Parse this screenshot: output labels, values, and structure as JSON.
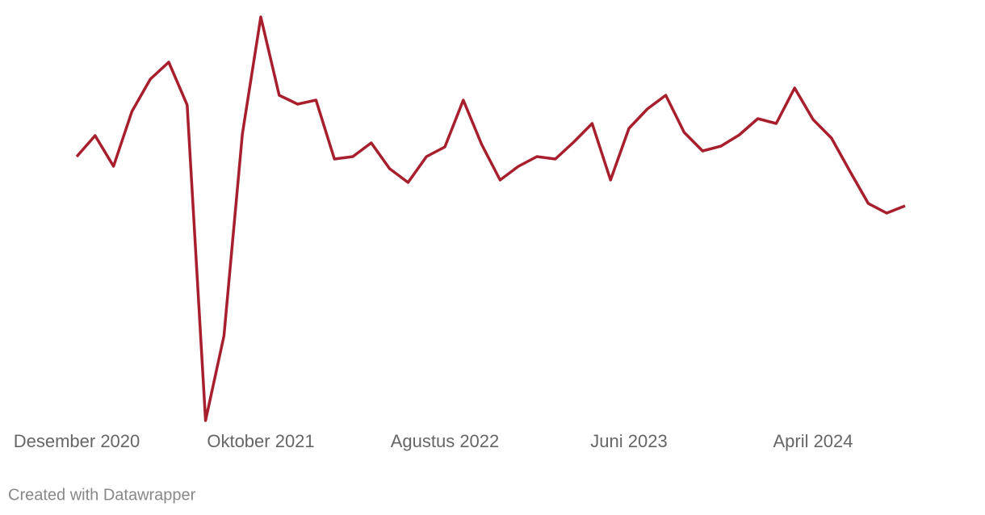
{
  "chart_data": {
    "type": "line",
    "categories": [
      "Desember 2020",
      null,
      null,
      null,
      null,
      null,
      null,
      null,
      null,
      null,
      "Oktober 2021",
      null,
      null,
      null,
      null,
      null,
      null,
      null,
      null,
      null,
      "Agustus 2022",
      null,
      null,
      null,
      null,
      null,
      null,
      null,
      null,
      null,
      "Juni 2023",
      null,
      null,
      null,
      null,
      null,
      null,
      null,
      null,
      null,
      "April 2024",
      null,
      null,
      null,
      null,
      null
    ],
    "series": [
      {
        "color": "#a71f2c",
        "values": [
          65.4,
          70.6,
          63,
          76.6,
          84.6,
          88.8,
          78.2,
          0,
          21,
          71,
          100,
          80.6,
          78.4,
          79.4,
          64.8,
          65.4,
          68.8,
          62.4,
          59,
          65.4,
          67.8,
          79.4,
          68.4,
          59.6,
          63,
          65.4,
          64.8,
          69,
          73.6,
          59.6,
          72.4,
          77.2,
          80.6,
          71.4,
          66.8,
          68,
          70.8,
          74.8,
          73.6,
          82.4,
          74.6,
          70,
          61.8,
          53.8,
          51.4,
          53.2
        ]
      }
    ],
    "ylim": [
      0,
      100
    ],
    "source": "Created with Datawrapper"
  }
}
